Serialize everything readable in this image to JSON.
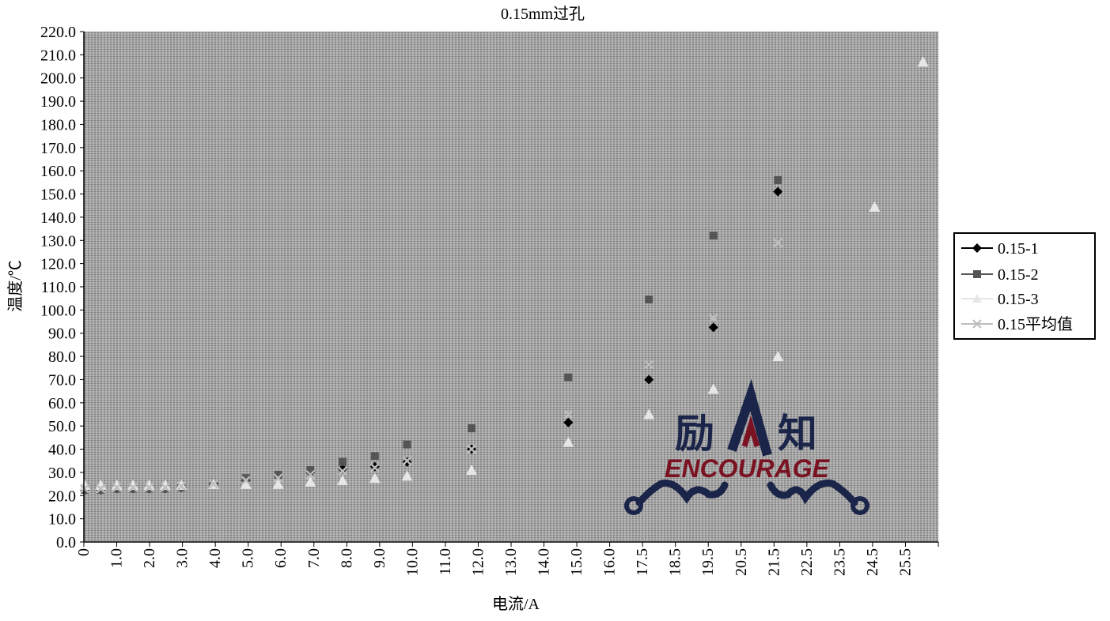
{
  "chart_data": {
    "type": "scatter",
    "title": "0.15mm过孔",
    "xlabel": "电流/A",
    "ylabel": "温度/℃",
    "ylim": [
      0,
      220
    ],
    "y_ticks": [
      "0.0",
      "10.0",
      "20.0",
      "30.0",
      "40.0",
      "50.0",
      "60.0",
      "70.0",
      "80.0",
      "90.0",
      "100.0",
      "110.0",
      "120.0",
      "130.0",
      "140.0",
      "150.0",
      "160.0",
      "170.0",
      "180.0",
      "190.0",
      "200.0",
      "210.0",
      "220.0"
    ],
    "x_tick_labels": [
      "0",
      "1.0",
      "2.0",
      "3.0",
      "4.0",
      "5.0",
      "6.0",
      "7.0",
      "8.0",
      "9.0",
      "10.0",
      "11.0",
      "12.0",
      "13.0",
      "14.0",
      "15.0",
      "16.0",
      "17.5",
      "18.5",
      "19.5",
      "20.5",
      "21.5",
      "22.5",
      "23.5",
      "24.5",
      "25.5"
    ],
    "x_categories": [
      "0",
      "0.5",
      "1.0",
      "1.5",
      "2.0",
      "2.5",
      "3.0",
      "4.0",
      "5.0",
      "6.0",
      "7.0",
      "8.0",
      "9.0",
      "10.0",
      "12.0",
      "15.0",
      "18.0",
      "20.0",
      "22.0",
      "25.0",
      "26.0"
    ],
    "grid": true,
    "legend_position": "right",
    "series": [
      {
        "name": "0.15-1",
        "marker": "diamond",
        "color": "#000000",
        "values": [
          22.5,
          22.5,
          23.0,
          23.0,
          23.0,
          23.0,
          23.5,
          25.0,
          26.5,
          28.5,
          30.0,
          31.5,
          32.5,
          34.5,
          40.0,
          51.5,
          70.0,
          92.5,
          151.0,
          null,
          null
        ]
      },
      {
        "name": "0.15-2",
        "marker": "square",
        "color": "#555555",
        "values": [
          22.5,
          22.5,
          23.0,
          23.0,
          23.0,
          23.0,
          23.5,
          25.0,
          27.5,
          29.0,
          31.0,
          34.5,
          37.0,
          42.0,
          49.0,
          71.0,
          104.5,
          132.0,
          156.0,
          null,
          null
        ]
      },
      {
        "name": "0.15-3",
        "marker": "triangle",
        "color": "#e6e6e6",
        "values": [
          24.5,
          24.5,
          24.5,
          24.5,
          24.5,
          24.5,
          24.5,
          25.0,
          25.0,
          25.0,
          26.0,
          26.5,
          27.5,
          28.5,
          31.0,
          43.0,
          55.0,
          66.0,
          80.0,
          144.5,
          207.0
        ]
      },
      {
        "name": "0.15平均值",
        "marker": "cross",
        "color": "#bdbdbd",
        "values": [
          23.0,
          23.0,
          23.5,
          23.5,
          23.5,
          23.5,
          24.0,
          25.0,
          26.5,
          27.5,
          29.0,
          30.5,
          32.0,
          35.0,
          40.0,
          55.0,
          76.5,
          96.5,
          129.0,
          null,
          null
        ]
      }
    ]
  },
  "colors": {
    "plot_background": "#7b7b7b",
    "grid_line": "#d8d8d8",
    "watermark_navy": "#1b2549",
    "watermark_red": "#7a1222"
  },
  "watermark": {
    "left_char": "励",
    "right_char": "知",
    "word": "ENCOURAGE"
  }
}
